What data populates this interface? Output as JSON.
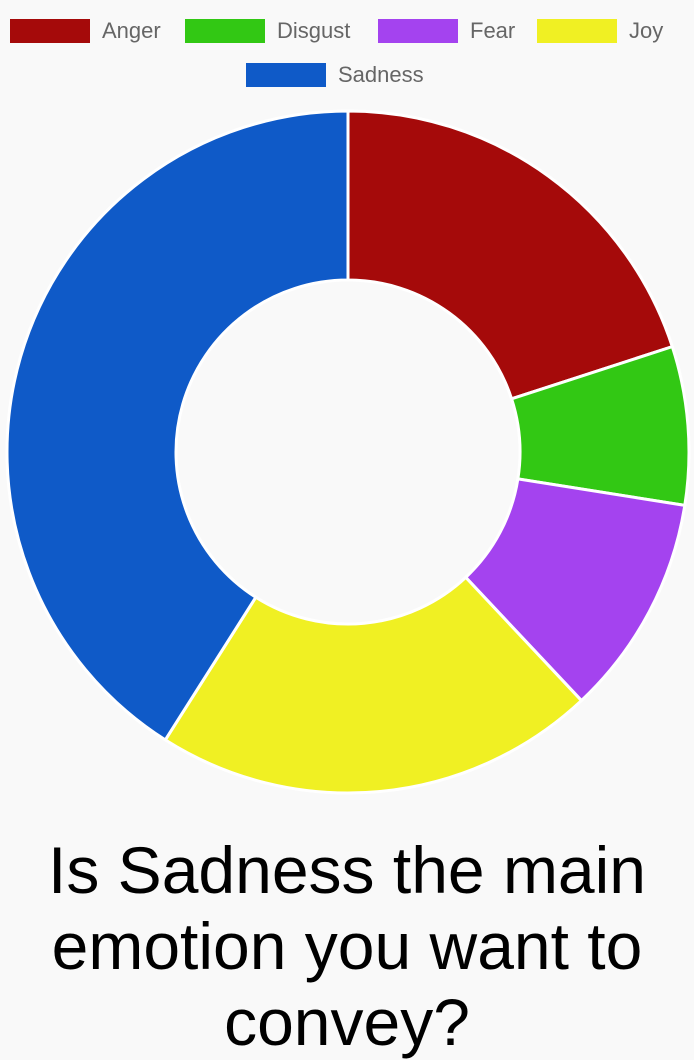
{
  "chart_data": {
    "type": "doughnut",
    "title": "",
    "categories": [
      "Anger",
      "Disgust",
      "Fear",
      "Joy",
      "Sadness"
    ],
    "values": [
      20,
      7.5,
      10.5,
      21,
      41
    ],
    "colors": [
      "#a50a0a",
      "#32c814",
      "#a443ef",
      "#f0f023",
      "#0f5ac8"
    ],
    "legend_position": "top"
  },
  "question": "Is Sadness the main emotion you want to convey?"
}
